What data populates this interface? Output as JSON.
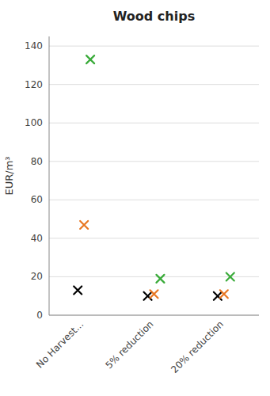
{
  "chart_data": {
    "type": "scatter",
    "title": "Wood chips",
    "ylabel": "EUR/m³",
    "categories": [
      "No Harvest...",
      "5% reduction",
      "20% reduction"
    ],
    "series": [
      {
        "color": "#000000",
        "values": [
          13,
          10,
          10
        ]
      },
      {
        "color": "#E87722",
        "values": [
          47,
          11,
          11
        ]
      },
      {
        "color": "#3AAB3A",
        "values": [
          133,
          19,
          20
        ]
      }
    ],
    "marker": "x",
    "ylim": [
      0,
      145
    ],
    "yticks": [
      0,
      20,
      40,
      60,
      80,
      100,
      120,
      140
    ],
    "grid": true
  }
}
